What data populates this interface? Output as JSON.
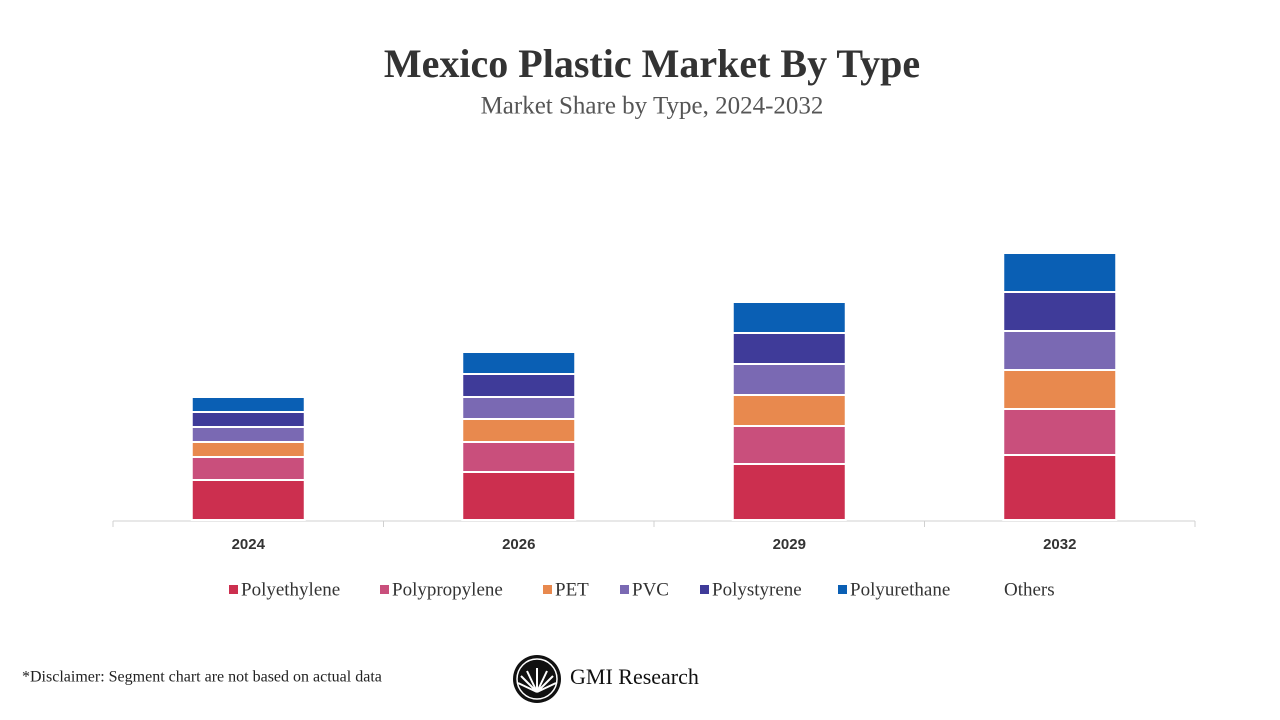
{
  "chart_data": {
    "type": "stacked_bar",
    "title": "Mexico Plastic Market By Type",
    "subtitle": "Market Share by Type, 2024-2032",
    "categories": [
      "2024",
      "2026",
      "2029",
      "2032"
    ],
    "series": [
      {
        "name": "Polyethylene",
        "color": "#cc2f4f",
        "values": [
          40,
          48,
          56,
          65
        ]
      },
      {
        "name": "Polypropylene",
        "color": "#c94f7c",
        "values": [
          23,
          30,
          38,
          46
        ]
      },
      {
        "name": "PET",
        "color": "#e8894e",
        "values": [
          15,
          23,
          31,
          39
        ]
      },
      {
        "name": "PVC",
        "color": "#7a69b3",
        "values": [
          15,
          22,
          31,
          39
        ]
      },
      {
        "name": "Polystyrene",
        "color": "#3f3b99",
        "values": [
          15,
          23,
          31,
          39
        ]
      },
      {
        "name": "Polyurethane",
        "color": "#0a5fb4",
        "values": [
          15,
          22,
          31,
          39
        ]
      },
      {
        "name": "Others",
        "values": [
          null,
          null,
          null,
          null
        ]
      }
    ],
    "ylim": [
      0,
      277
    ]
  },
  "footer": {
    "disclaimer": "*Disclaimer:  Segment chart are not based on actual data",
    "brand": "GMI Research"
  }
}
